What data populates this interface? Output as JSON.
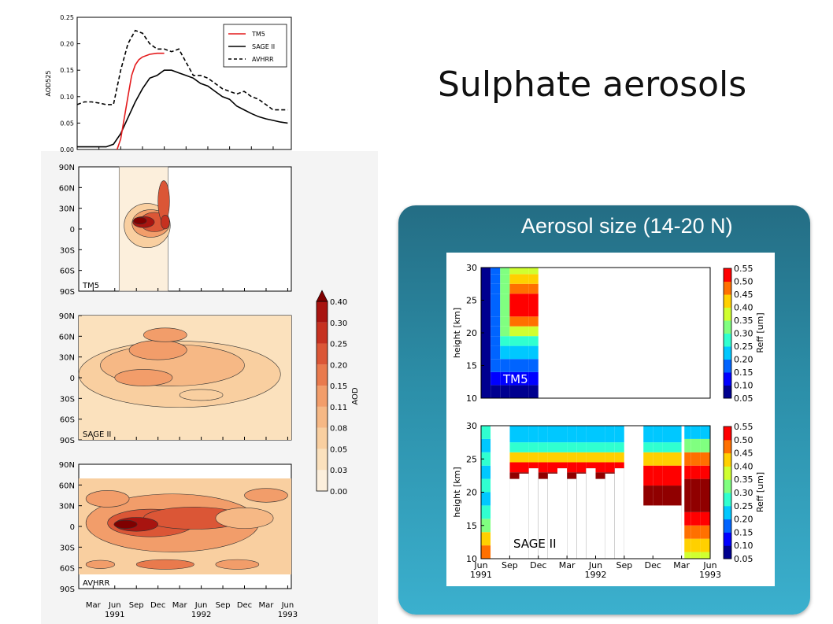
{
  "slide": {
    "title": "Sulphate aerosols",
    "panel_title": "Aerosol size (14-20 N)"
  },
  "chart_data": [
    {
      "type": "line",
      "ylabel": "AOD525",
      "ylim": [
        0,
        0.25
      ],
      "yticks": [
        "0.00",
        "0.05",
        "0.10",
        "0.15",
        "0.20",
        "0.25"
      ],
      "x_months": "Jan 1991 - Jun 1993, monthly (same time axis as the maps below)",
      "series": [
        {
          "name": "TM5",
          "color": "#e41a1c",
          "style": "solid",
          "x": [
            5.5,
            6,
            6.5,
            7,
            7.5,
            8,
            8.5,
            9,
            10,
            11,
            12
          ],
          "y": [
            0.0,
            0.02,
            0.06,
            0.1,
            0.14,
            0.16,
            0.17,
            0.175,
            0.18,
            0.182,
            0.182
          ]
        },
        {
          "name": "SAGE II",
          "color": "#000000",
          "style": "solid",
          "x": [
            0,
            1,
            2,
            3,
            4,
            5,
            6,
            7,
            8,
            9,
            10,
            11,
            12,
            13,
            14,
            15,
            16,
            17,
            18,
            19,
            20,
            21,
            22,
            23,
            24,
            25,
            26,
            27,
            28,
            29
          ],
          "y": [
            0.005,
            0.005,
            0.005,
            0.005,
            0.005,
            0.01,
            0.03,
            0.06,
            0.09,
            0.115,
            0.135,
            0.14,
            0.15,
            0.15,
            0.145,
            0.14,
            0.135,
            0.125,
            0.12,
            0.11,
            0.1,
            0.095,
            0.082,
            0.075,
            0.068,
            0.062,
            0.058,
            0.055,
            0.052,
            0.05
          ]
        },
        {
          "name": "AVHRR",
          "color": "#000000",
          "style": "dashed",
          "x": [
            0,
            1,
            2,
            3,
            4,
            5,
            6,
            7,
            8,
            9,
            10,
            11,
            12,
            13,
            14,
            15,
            16,
            17,
            18,
            19,
            20,
            21,
            22,
            23,
            24,
            25,
            26,
            27,
            28,
            29
          ],
          "y": [
            0.085,
            0.09,
            0.09,
            0.088,
            0.085,
            0.085,
            0.15,
            0.2,
            0.225,
            0.22,
            0.2,
            0.19,
            0.19,
            0.185,
            0.19,
            0.165,
            0.14,
            0.14,
            0.135,
            0.125,
            0.115,
            0.11,
            0.105,
            0.11,
            0.1,
            0.095,
            0.085,
            0.075,
            0.075,
            0.075
          ]
        }
      ]
    },
    {
      "type": "heatmap",
      "panels": [
        "TM5",
        "SAGE II",
        "AVHRR"
      ],
      "y_ticks": [
        "90N",
        "60N",
        "30N",
        "0",
        "30S",
        "60S",
        "90S"
      ],
      "x_ticks": [
        "Mar",
        "Jun",
        "Sep",
        "Dec",
        "Mar",
        "Jun",
        "Sep",
        "Dec",
        "Mar",
        "Jun"
      ],
      "x_years": [
        "1991",
        "1992",
        "1993"
      ],
      "colorbar_label": "AOD",
      "colorbar_ticks": [
        "0.00",
        "0.03",
        "0.05",
        "0.08",
        "0.11",
        "0.15",
        "0.20",
        "0.25",
        "0.30",
        "0.40"
      ],
      "colors": [
        "#fcefdc",
        "#fbe1bd",
        "#f9cfa0",
        "#f6b885",
        "#f29d6a",
        "#e97a4d",
        "#db5636",
        "#c63120",
        "#a81410",
        "#7f0000"
      ]
    },
    {
      "type": "heatmap",
      "title": "Aerosol size (14-20 N)",
      "panels": [
        "TM5",
        "SAGE II"
      ],
      "ylabel": "height [km]",
      "y_ticks": [
        "10",
        "15",
        "20",
        "25",
        "30"
      ],
      "x_ticks": [
        "Jun",
        "Sep",
        "Dec",
        "Mar",
        "Jun",
        "Sep",
        "Dec",
        "Mar",
        "Jun"
      ],
      "x_years": [
        "1991",
        "1992",
        "1993"
      ],
      "colorbar_label": "Reff [um]",
      "colorbar_ticks": [
        "0.05",
        "0.10",
        "0.15",
        "0.20",
        "0.25",
        "0.30",
        "0.35",
        "0.40",
        "0.45",
        "0.50",
        "0.55"
      ],
      "colors": [
        "#00008f",
        "#0000ff",
        "#0064ff",
        "#00c8ff",
        "#30ffd0",
        "#80ff80",
        "#d0ff30",
        "#ffd000",
        "#ff7000",
        "#ff0000",
        "#900000"
      ]
    }
  ]
}
